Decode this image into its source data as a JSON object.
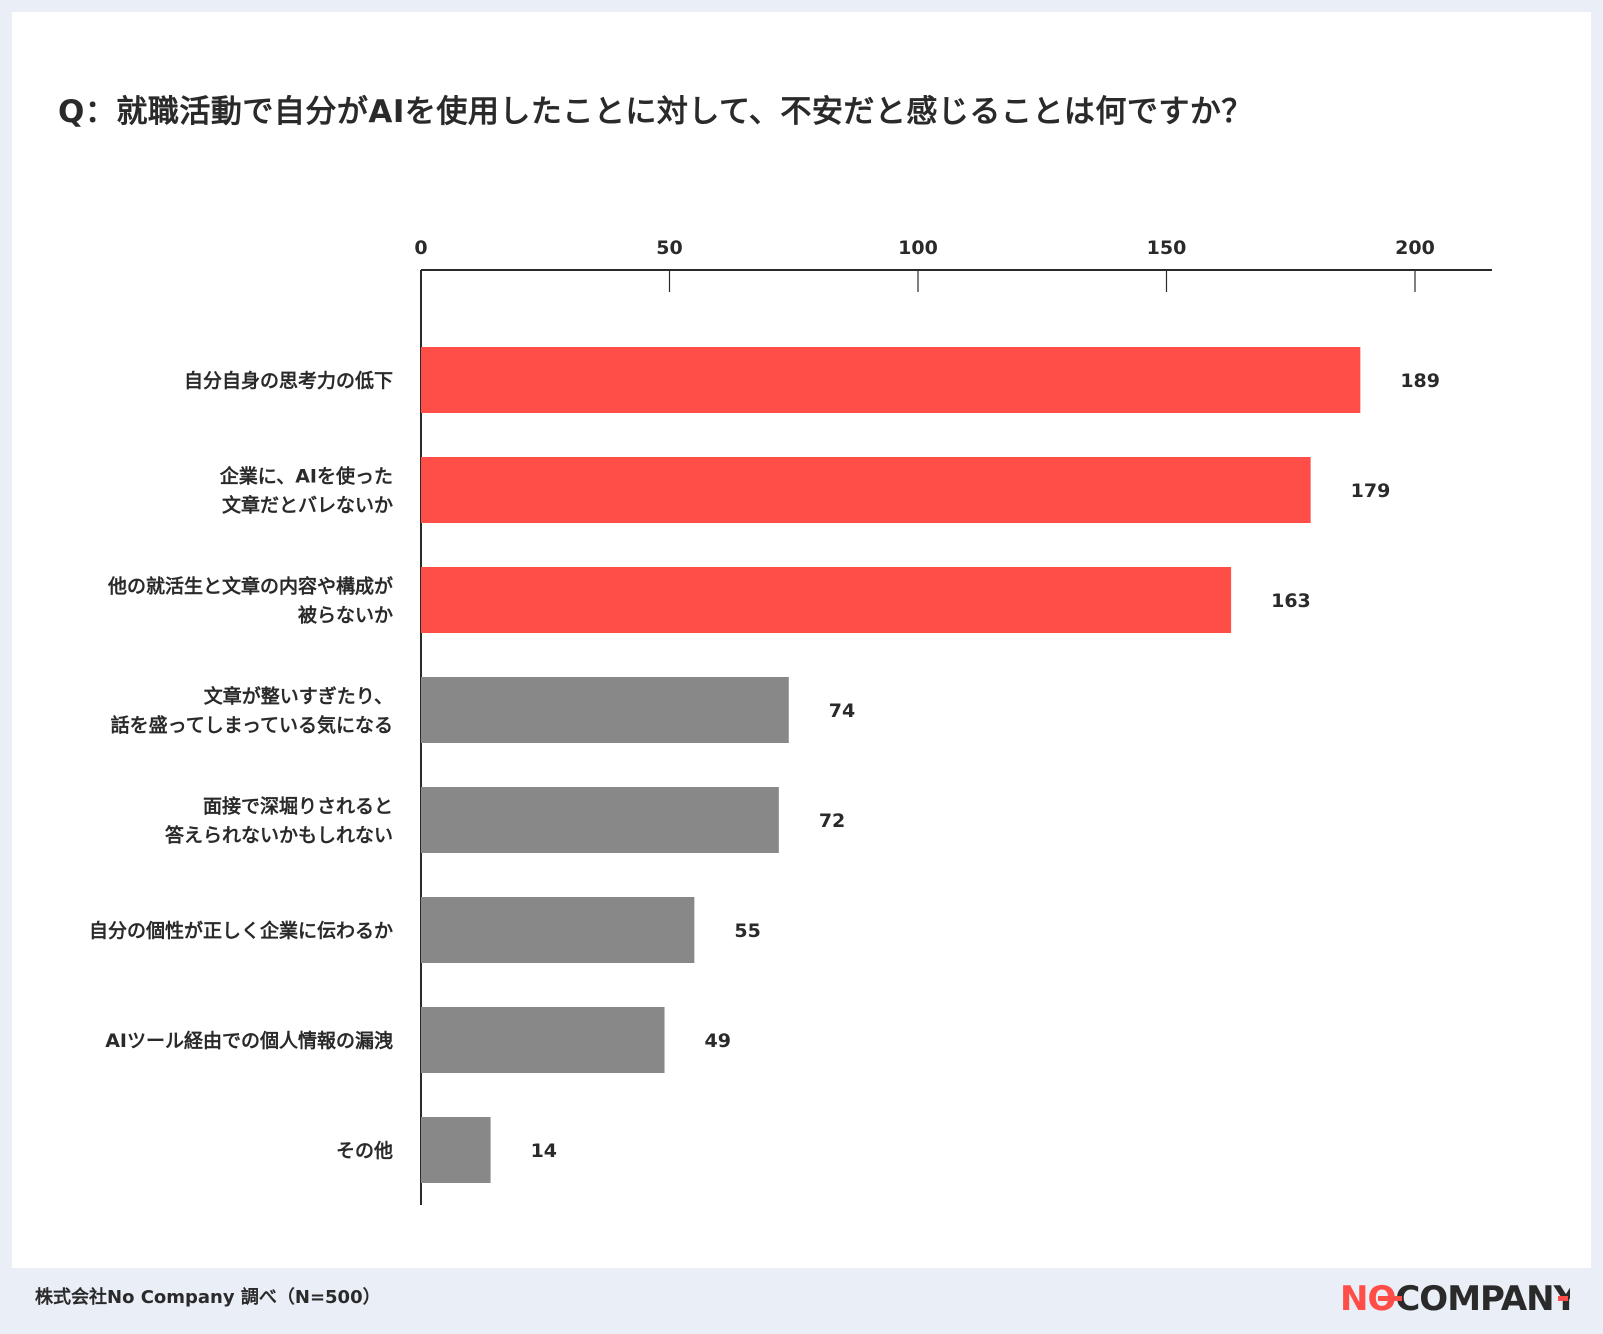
{
  "chart_data": {
    "type": "bar",
    "orientation": "horizontal",
    "title": "Q：就職活動で自分がAIを使用したことに対して、不安だと感じることは何ですか？",
    "categories": [
      [
        "自分自身の思考力の低下"
      ],
      [
        "企業に、AIを使った",
        "文章だとバレないか"
      ],
      [
        "他の就活生と文章の内容や構成が",
        "被らないか"
      ],
      [
        "文章が整いすぎたり、",
        "話を盛ってしまっている気になる"
      ],
      [
        "面接で深堀りされると",
        "答えられないかもしれない"
      ],
      [
        "自分の個性が正しく企業に伝わるか"
      ],
      [
        "AIツール経由での個人情報の漏洩"
      ],
      [
        "その他"
      ]
    ],
    "values": [
      189,
      179,
      163,
      74,
      72,
      55,
      49,
      14
    ],
    "value_labels": [
      "189",
      "179",
      "163",
      "74",
      "72",
      "55",
      "49",
      "14"
    ],
    "highlight": [
      true,
      true,
      true,
      false,
      false,
      false,
      false,
      false
    ],
    "xticks": [
      0,
      50,
      100,
      150,
      200
    ],
    "xtick_labels": [
      "0",
      "50",
      "100",
      "150",
      "200"
    ],
    "xlim": [
      0,
      215
    ],
    "axis_position": "top",
    "highlight_color": "#ff4d47",
    "default_color": "#888888"
  },
  "footer": {
    "source": "株式会社No Company 調べ（N=500）"
  },
  "logo": {
    "text": "NOCOMPANY",
    "part1": "NO",
    "part2": "COMPANY",
    "accent_color": "#ff4d47",
    "dark_color": "#2a2a2a"
  }
}
